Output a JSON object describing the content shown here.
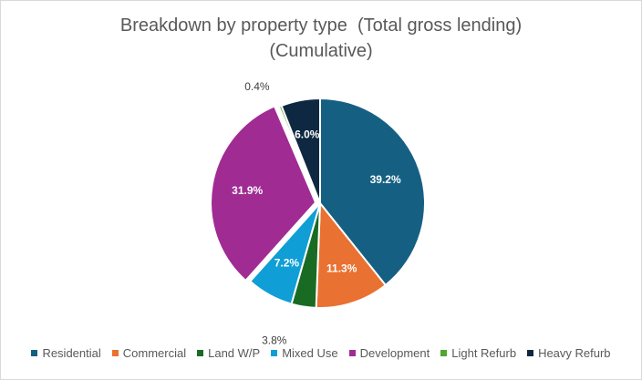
{
  "chart_data": {
    "type": "pie",
    "title": "Breakdown by property type  (Total gross lending)",
    "subtitle": "(Cumulative)",
    "legend_position": "bottom",
    "slices": [
      {
        "name": "Residential",
        "value": 39.2,
        "label": "39.2%",
        "color": "#156082"
      },
      {
        "name": "Commercial",
        "value": 11.3,
        "label": "11.3%",
        "color": "#E97132"
      },
      {
        "name": "Land W/P",
        "value": 3.8,
        "label": "3.8%",
        "color": "#196B24"
      },
      {
        "name": "Mixed Use",
        "value": 7.2,
        "label": "7.2%",
        "color": "#0F9ED5"
      },
      {
        "name": "Development",
        "value": 31.9,
        "label": "31.9%",
        "color": "#A02B93"
      },
      {
        "name": "Light Refurb",
        "value": 0.4,
        "label": "0.4%",
        "color": "#4EA72E"
      },
      {
        "name": "Heavy Refurb",
        "value": 6.0,
        "label": "6.0%",
        "color": "#0E2841"
      }
    ]
  }
}
